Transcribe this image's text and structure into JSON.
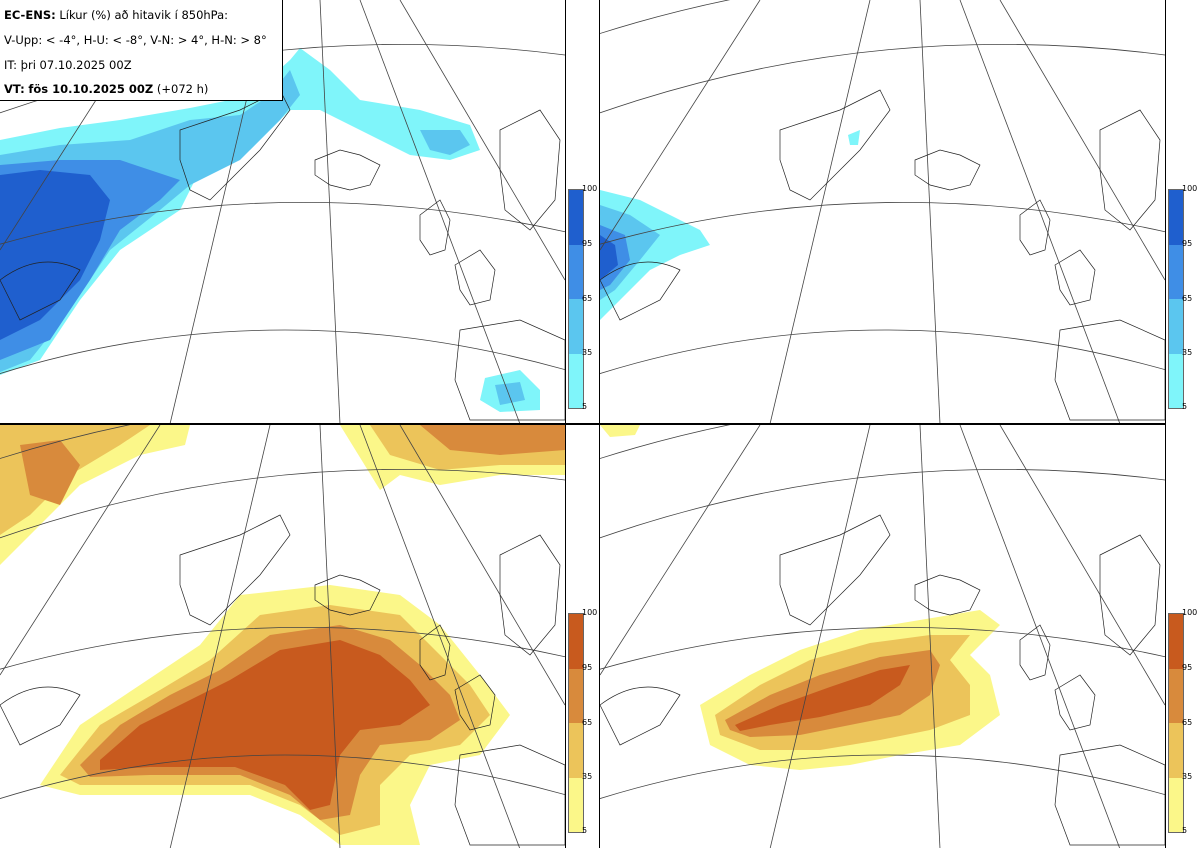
{
  "info": {
    "model": "EC-ENS:",
    "title": "Líkur (%) að hitavik í 850hPa:",
    "legend_line": "V-Upp: < -4°, H-U: < -8°, V-N: > 4°, H-N: > 8°",
    "init_time": "IT: þri 07.10.2025 00Z",
    "valid_prefix": "VT:",
    "valid_time": "fös 10.10.2025 00Z",
    "lead": "(+072 h)"
  },
  "colorbar_blue": {
    "ticks": [
      "100",
      "95",
      "65",
      "35",
      "5"
    ],
    "colors": [
      "#1f5fce",
      "#3f8ee6",
      "#5bc6ef",
      "#7ff5fa"
    ]
  },
  "colorbar_orange": {
    "ticks": [
      "100",
      "95",
      "65",
      "35",
      "5"
    ],
    "colors": [
      "#c85a1e",
      "#d88a3c",
      "#ecc45a",
      "#fbf789"
    ]
  },
  "panels": [
    {
      "id": "V-Upp",
      "threshold": "< -4°",
      "scheme": "blue"
    },
    {
      "id": "H-U",
      "threshold": "< -8°",
      "scheme": "blue"
    },
    {
      "id": "V-N",
      "threshold": "> 4°",
      "scheme": "orange"
    },
    {
      "id": "H-N",
      "threshold": "> 8°",
      "scheme": "orange"
    }
  ]
}
